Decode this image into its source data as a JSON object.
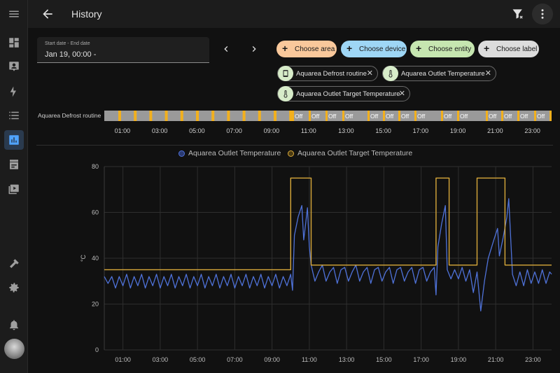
{
  "header": {
    "title": "History"
  },
  "sidebar": {
    "items": [
      {
        "name": "menu",
        "icon": "menu-icon"
      },
      {
        "name": "overview",
        "icon": "dashboard-icon"
      },
      {
        "name": "map",
        "icon": "account-box-icon"
      },
      {
        "name": "energy",
        "icon": "lightning-icon"
      },
      {
        "name": "logbook",
        "icon": "list-icon"
      },
      {
        "name": "history",
        "icon": "chart-box-icon",
        "active": true
      },
      {
        "name": "hacs",
        "icon": "hacs-icon"
      },
      {
        "name": "media",
        "icon": "play-box-icon"
      },
      {
        "name": "developer-tools",
        "icon": "hammer-icon"
      },
      {
        "name": "settings",
        "icon": "gear-icon"
      },
      {
        "name": "notifications",
        "icon": "bell-icon"
      }
    ]
  },
  "date_picker": {
    "label": "Start date - End date",
    "value": "Jan 19, 00:00 -"
  },
  "pickers": [
    {
      "label": "Choose area",
      "color": "#f9c89b"
    },
    {
      "label": "Choose device",
      "color": "#9ed6f5"
    },
    {
      "label": "Choose entity",
      "color": "#c6e6b0"
    },
    {
      "label": "Choose label",
      "color": "#dcdcdc"
    }
  ],
  "selected": [
    {
      "label": "Aquarea Defrost routine",
      "icon": "cellphone-icon"
    },
    {
      "label": "Aquarea Outlet Temperature",
      "icon": "thermometer-icon"
    },
    {
      "label": "Aquarea Outlet Target Temperature",
      "icon": "thermometer-icon"
    }
  ],
  "timeline": {
    "entity": "Aquarea Defrost routine",
    "off_label": "Off",
    "off_count": 15
  },
  "x_ticks": [
    "01:00",
    "03:00",
    "05:00",
    "07:00",
    "09:00",
    "11:00",
    "13:00",
    "15:00",
    "17:00",
    "19:00",
    "21:00",
    "23:00"
  ],
  "chart_data": {
    "type": "line",
    "title": "",
    "xlabel": "",
    "ylabel": "°C",
    "xlim": [
      0,
      24
    ],
    "ylim": [
      0,
      80
    ],
    "y_ticks": [
      0,
      20,
      40,
      60,
      80
    ],
    "x_ticks_hours": [
      1,
      3,
      5,
      7,
      9,
      11,
      13,
      15,
      17,
      19,
      21,
      23
    ],
    "x_tick_labels": [
      "01:00",
      "03:00",
      "05:00",
      "07:00",
      "09:00",
      "11:00",
      "13:00",
      "15:00",
      "17:00",
      "19:00",
      "21:00",
      "23:00"
    ],
    "grid": true,
    "legend_position": "top-center",
    "series": [
      {
        "name": "Aquarea Outlet Temperature",
        "color": "#4f72d9",
        "points": [
          [
            0.0,
            32
          ],
          [
            0.2,
            29
          ],
          [
            0.4,
            32
          ],
          [
            0.6,
            27
          ],
          [
            0.8,
            32
          ],
          [
            1.0,
            28
          ],
          [
            1.2,
            33
          ],
          [
            1.4,
            27
          ],
          [
            1.6,
            32
          ],
          [
            1.8,
            28
          ],
          [
            2.0,
            33
          ],
          [
            2.2,
            27
          ],
          [
            2.4,
            32
          ],
          [
            2.6,
            28
          ],
          [
            2.8,
            33
          ],
          [
            3.0,
            27
          ],
          [
            3.2,
            32
          ],
          [
            3.4,
            28
          ],
          [
            3.6,
            33
          ],
          [
            3.8,
            27
          ],
          [
            4.0,
            32
          ],
          [
            4.2,
            28
          ],
          [
            4.4,
            33
          ],
          [
            4.6,
            27
          ],
          [
            4.8,
            32
          ],
          [
            5.0,
            28
          ],
          [
            5.2,
            33
          ],
          [
            5.4,
            27
          ],
          [
            5.6,
            32
          ],
          [
            5.8,
            28
          ],
          [
            6.0,
            33
          ],
          [
            6.2,
            27
          ],
          [
            6.4,
            32
          ],
          [
            6.6,
            28
          ],
          [
            6.8,
            33
          ],
          [
            7.0,
            27
          ],
          [
            7.2,
            32
          ],
          [
            7.4,
            28
          ],
          [
            7.6,
            33
          ],
          [
            7.8,
            27
          ],
          [
            8.0,
            32
          ],
          [
            8.2,
            28
          ],
          [
            8.4,
            33
          ],
          [
            8.6,
            27
          ],
          [
            8.8,
            32
          ],
          [
            9.0,
            28
          ],
          [
            9.2,
            33
          ],
          [
            9.4,
            27
          ],
          [
            9.6,
            32
          ],
          [
            9.8,
            28
          ],
          [
            10.0,
            33
          ],
          [
            10.1,
            26
          ],
          [
            10.2,
            50
          ],
          [
            10.4,
            58
          ],
          [
            10.6,
            63
          ],
          [
            10.7,
            48
          ],
          [
            10.8,
            55
          ],
          [
            10.9,
            62
          ],
          [
            11.0,
            45
          ],
          [
            11.1,
            37
          ],
          [
            11.3,
            30
          ],
          [
            11.5,
            34
          ],
          [
            11.7,
            37
          ],
          [
            11.9,
            30
          ],
          [
            12.1,
            34
          ],
          [
            12.3,
            36
          ],
          [
            12.5,
            29
          ],
          [
            12.7,
            35
          ],
          [
            12.9,
            36
          ],
          [
            13.1,
            30
          ],
          [
            13.3,
            34
          ],
          [
            13.5,
            37
          ],
          [
            13.7,
            30
          ],
          [
            13.9,
            34
          ],
          [
            14.1,
            36
          ],
          [
            14.3,
            29
          ],
          [
            14.5,
            35
          ],
          [
            14.7,
            36
          ],
          [
            14.9,
            30
          ],
          [
            15.1,
            34
          ],
          [
            15.3,
            36
          ],
          [
            15.5,
            29
          ],
          [
            15.7,
            35
          ],
          [
            15.9,
            36
          ],
          [
            16.1,
            30
          ],
          [
            16.3,
            34
          ],
          [
            16.5,
            36
          ],
          [
            16.7,
            29
          ],
          [
            16.9,
            35
          ],
          [
            17.1,
            36
          ],
          [
            17.3,
            30
          ],
          [
            17.5,
            34
          ],
          [
            17.7,
            36
          ],
          [
            17.8,
            24
          ],
          [
            17.9,
            45
          ],
          [
            18.1,
            55
          ],
          [
            18.3,
            63
          ],
          [
            18.4,
            35
          ],
          [
            18.6,
            31
          ],
          [
            18.8,
            35
          ],
          [
            19.0,
            31
          ],
          [
            19.2,
            36
          ],
          [
            19.4,
            30
          ],
          [
            19.6,
            35
          ],
          [
            19.8,
            25
          ],
          [
            20.0,
            34
          ],
          [
            20.2,
            17
          ],
          [
            20.4,
            30
          ],
          [
            20.6,
            40
          ],
          [
            20.9,
            48
          ],
          [
            21.1,
            53
          ],
          [
            21.2,
            41
          ],
          [
            21.4,
            49
          ],
          [
            21.6,
            58
          ],
          [
            21.7,
            66
          ],
          [
            21.9,
            33
          ],
          [
            22.1,
            28
          ],
          [
            22.3,
            34
          ],
          [
            22.5,
            28
          ],
          [
            22.7,
            35
          ],
          [
            22.9,
            29
          ],
          [
            23.1,
            34
          ],
          [
            23.3,
            29
          ],
          [
            23.5,
            35
          ],
          [
            23.7,
            29
          ],
          [
            23.9,
            34
          ],
          [
            24.0,
            33
          ]
        ]
      },
      {
        "name": "Aquarea Outlet Target Temperature",
        "color": "#d9a93a",
        "points": [
          [
            0.0,
            35
          ],
          [
            10.0,
            35
          ],
          [
            10.0,
            75
          ],
          [
            11.1,
            75
          ],
          [
            11.1,
            37
          ],
          [
            17.8,
            37
          ],
          [
            17.8,
            75
          ],
          [
            18.5,
            75
          ],
          [
            18.5,
            37
          ],
          [
            20.0,
            37
          ],
          [
            20.0,
            75
          ],
          [
            21.5,
            75
          ],
          [
            21.5,
            37
          ],
          [
            24.0,
            37
          ]
        ]
      }
    ]
  }
}
